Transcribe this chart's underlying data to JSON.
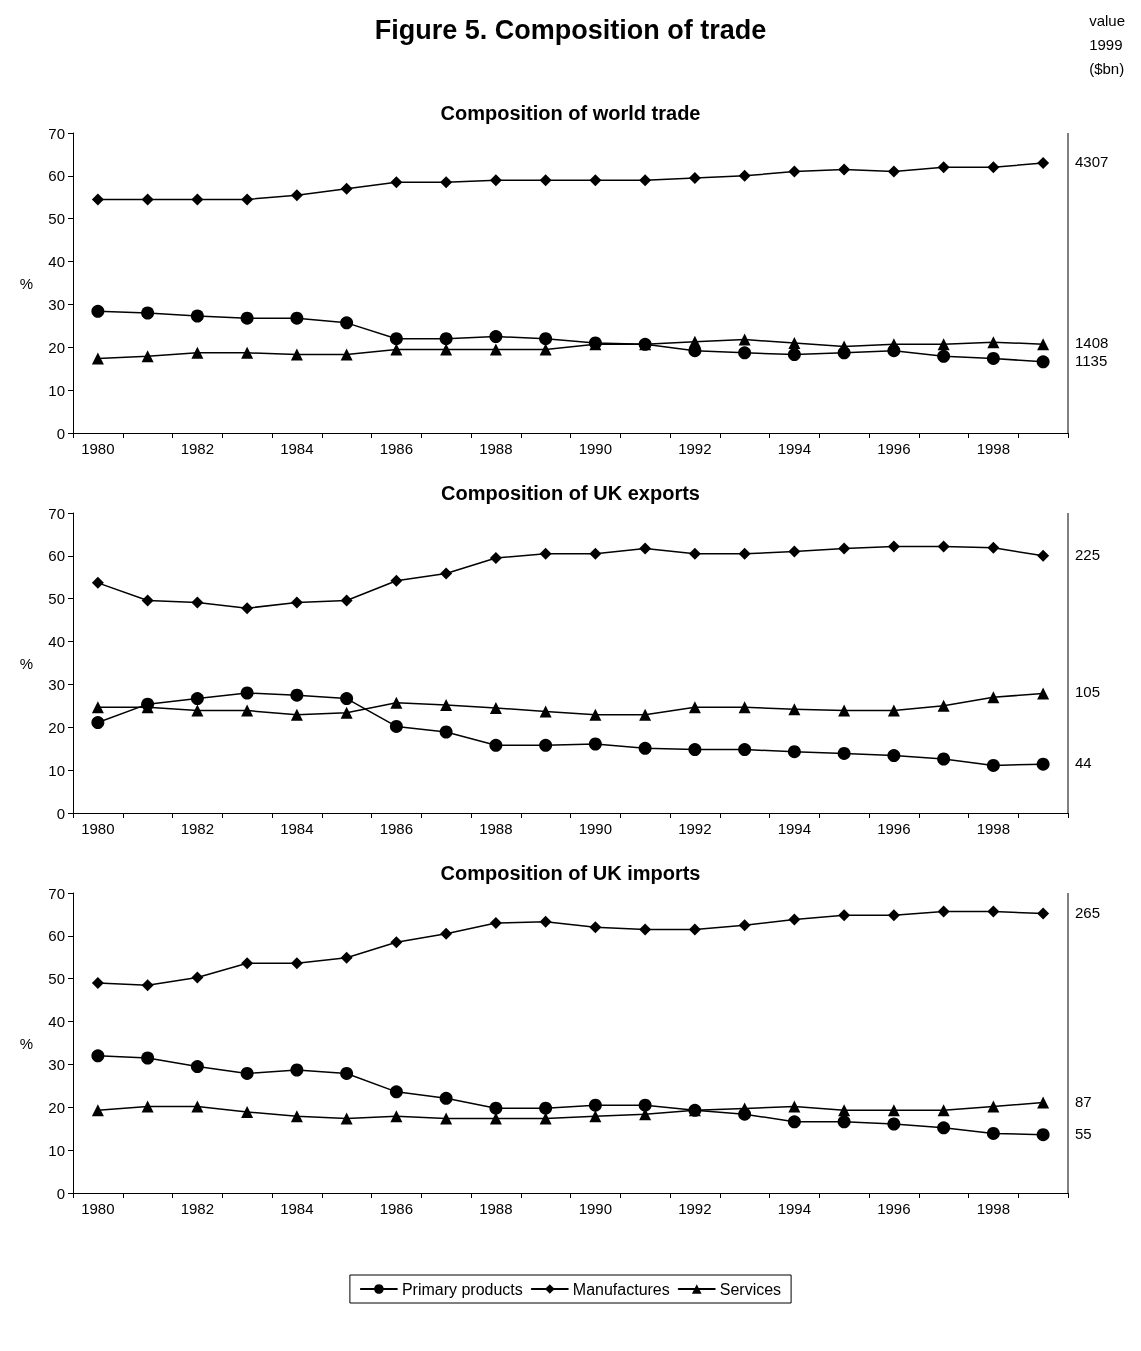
{
  "chart_data": [
    {
      "type": "line",
      "title": "Composition of world trade",
      "ylabel": "%",
      "categories": [
        "1980",
        null,
        "1982",
        null,
        "1984",
        null,
        "1986",
        null,
        "1988",
        null,
        "1990",
        null,
        "1992",
        null,
        "1994",
        null,
        "1996",
        null,
        "1998",
        null
      ],
      "ylim": [
        0,
        70
      ],
      "yticks": [
        0,
        10,
        20,
        30,
        40,
        50,
        60,
        70
      ],
      "grid": false,
      "line_style": "solid",
      "annotations": [
        "Figure 5. Composition of trade",
        "value\n1999\n($bn)",
        "4307",
        "1408",
        "1135"
      ],
      "series": [
        {
          "color": "#000000",
          "marker": "circle",
          "values": [
            28.4,
            28,
            27.3,
            26.8,
            26.8,
            25.7,
            22,
            22,
            22.5,
            22,
            21,
            20.7,
            19.2,
            18.7,
            18.3,
            18.7,
            19.2,
            17.9,
            17.4,
            16.6
          ]
        },
        {
          "color": "#000000",
          "marker": "diamond",
          "values": [
            54.5,
            54.5,
            54.5,
            54.5,
            55.5,
            57,
            58.5,
            58.5,
            59,
            59,
            59,
            59,
            59.5,
            60,
            61,
            61.5,
            61,
            62,
            62,
            63
          ]
        },
        {
          "color": "#000000",
          "marker": "triangle",
          "values": [
            17.4,
            17.9,
            18.7,
            18.7,
            18.3,
            18.3,
            19.5,
            19.5,
            19.5,
            19.5,
            20.7,
            20.7,
            21.3,
            21.8,
            21,
            20.2,
            20.7,
            20.7,
            21.2,
            20.7
          ]
        }
      ]
    },
    {
      "type": "line",
      "title": "Composition of UK exports",
      "ylabel": "%",
      "categories": [
        "1980",
        null,
        "1982",
        null,
        "1984",
        null,
        "1986",
        null,
        "1988",
        null,
        "1990",
        null,
        "1992",
        null,
        "1994",
        null,
        "1996",
        null,
        "1998",
        null
      ],
      "ylim": [
        0,
        70
      ],
      "yticks": [
        0,
        10,
        20,
        30,
        40,
        50,
        60,
        70
      ],
      "grid": false,
      "line_style": "solid",
      "annotations": [
        "225",
        "105",
        "44"
      ],
      "series": [
        {
          "color": "#000000",
          "marker": "circle",
          "values": [
            21.1,
            25.4,
            26.7,
            28,
            27.5,
            26.7,
            20.2,
            18.9,
            15.8,
            15.8,
            16.1,
            15.1,
            14.8,
            14.8,
            14.3,
            13.9,
            13.4,
            12.6,
            11.1,
            11.4
          ]
        },
        {
          "color": "#000000",
          "marker": "diamond",
          "values": [
            53.7,
            49.6,
            49.1,
            47.8,
            49.1,
            49.6,
            54.2,
            55.9,
            59.5,
            60.5,
            60.5,
            61.7,
            60.5,
            60.5,
            61,
            61.7,
            62.2,
            62.2,
            61.9,
            60
          ]
        },
        {
          "color": "#000000",
          "marker": "triangle",
          "values": [
            24.7,
            24.7,
            23.9,
            23.9,
            22.9,
            23.4,
            25.7,
            25.2,
            24.5,
            23.7,
            22.9,
            22.9,
            24.7,
            24.7,
            24.2,
            23.9,
            23.9,
            25,
            27,
            27.9
          ]
        }
      ]
    },
    {
      "type": "line",
      "title": "Composition of UK imports",
      "ylabel": "%",
      "categories": [
        "1980",
        null,
        "1982",
        null,
        "1984",
        null,
        "1986",
        null,
        "1988",
        null,
        "1990",
        null,
        "1992",
        null,
        "1994",
        null,
        "1996",
        null,
        "1998",
        null
      ],
      "ylim": [
        0,
        70
      ],
      "yticks": [
        0,
        10,
        20,
        30,
        40,
        50,
        60,
        70
      ],
      "grid": false,
      "line_style": "solid",
      "legend": "bottom",
      "annotations": [
        "265",
        "87",
        "55"
      ],
      "series": [
        {
          "name": "Primary products",
          "color": "#000000",
          "marker": "circle",
          "values": [
            32,
            31.5,
            29.5,
            27.9,
            28.7,
            27.9,
            23.6,
            22.1,
            19.8,
            19.8,
            20.5,
            20.5,
            19.3,
            18.4,
            16.6,
            16.6,
            16.1,
            15.2,
            13.9,
            13.6
          ]
        },
        {
          "name": "Manufactures",
          "color": "#000000",
          "marker": "diamond",
          "values": [
            49,
            48.5,
            50.3,
            53.6,
            53.6,
            54.9,
            58.5,
            60.5,
            63,
            63.3,
            62,
            61.5,
            61.5,
            62.5,
            63.8,
            64.8,
            64.8,
            65.7,
            65.7,
            65.2
          ]
        },
        {
          "name": "Services",
          "color": "#000000",
          "marker": "triangle",
          "values": [
            19.3,
            20.2,
            20.2,
            18.9,
            17.9,
            17.4,
            17.9,
            17.4,
            17.4,
            17.4,
            17.9,
            18.4,
            19.3,
            19.7,
            20.2,
            19.3,
            19.3,
            19.3,
            20.2,
            21.1
          ]
        }
      ]
    }
  ]
}
